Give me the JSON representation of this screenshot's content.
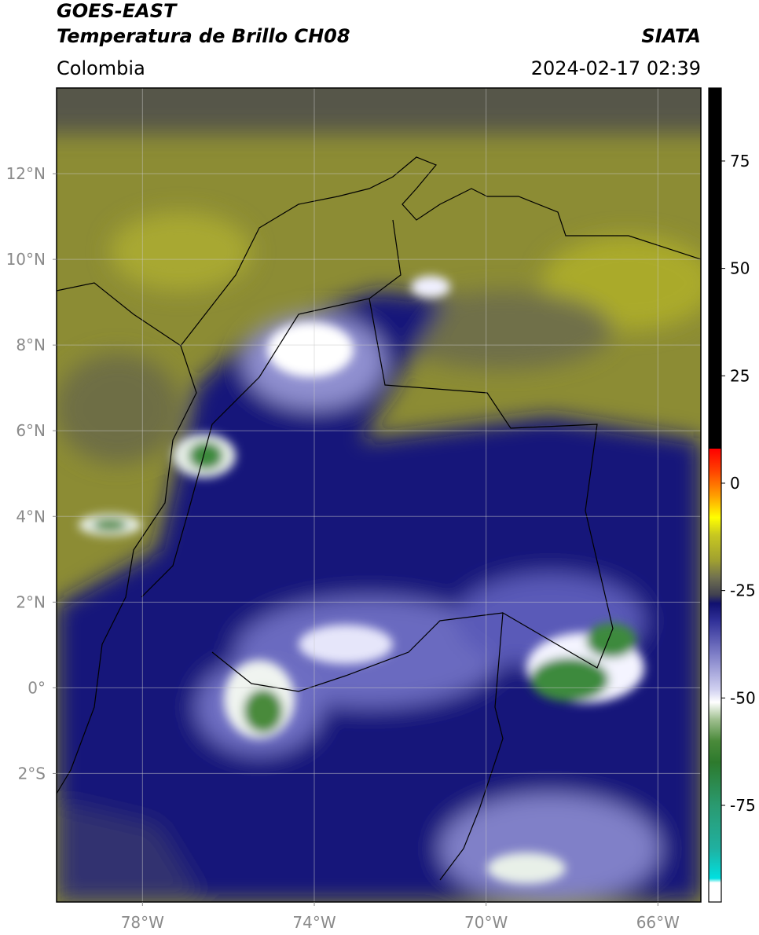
{
  "header": {
    "title": "GOES-EAST",
    "subtitle": "Temperatura de Brillo CH08",
    "region": "Colombia",
    "source": "SIATA",
    "timestamp": "2024-02-17 02:39"
  },
  "map": {
    "xlim": [
      -80,
      -65
    ],
    "ylim": [
      -5,
      14
    ],
    "grid": true,
    "xticks": [
      {
        "value": -78,
        "label": "78°W"
      },
      {
        "value": -74,
        "label": "74°W"
      },
      {
        "value": -70,
        "label": "70°W"
      },
      {
        "value": -66,
        "label": "66°W"
      }
    ],
    "yticks": [
      {
        "value": 12,
        "label": "12°N"
      },
      {
        "value": 10,
        "label": "10°N"
      },
      {
        "value": 8,
        "label": "8°N"
      },
      {
        "value": 6,
        "label": "6°N"
      },
      {
        "value": 4,
        "label": "4°N"
      },
      {
        "value": 2,
        "label": "2°N"
      },
      {
        "value": 0,
        "label": "0°"
      },
      {
        "value": -2,
        "label": "2°S"
      }
    ]
  },
  "colorbar": {
    "lim": [
      -97.5,
      92
    ],
    "ticks": [
      75,
      50,
      25,
      0,
      -25,
      -50,
      -75
    ],
    "stops": [
      {
        "value": -97.5,
        "color": "#ffffff"
      },
      {
        "value": -93,
        "color": "#ffffff"
      },
      {
        "value": -92,
        "color": "#00e0e0"
      },
      {
        "value": -85,
        "color": "#20b0a0"
      },
      {
        "value": -75,
        "color": "#2a9a70"
      },
      {
        "value": -65,
        "color": "#2d7a2d"
      },
      {
        "value": -60,
        "color": "#4a8a3a"
      },
      {
        "value": -55,
        "color": "#a0c090"
      },
      {
        "value": -51,
        "color": "#ffffff"
      },
      {
        "value": -48,
        "color": "#d0d0f0"
      },
      {
        "value": -40,
        "color": "#8080c8"
      },
      {
        "value": -32,
        "color": "#303098"
      },
      {
        "value": -28,
        "color": "#101070"
      },
      {
        "value": -26,
        "color": "#404050"
      },
      {
        "value": -22,
        "color": "#707050"
      },
      {
        "value": -18,
        "color": "#a0a030"
      },
      {
        "value": -12,
        "color": "#c8c820"
      },
      {
        "value": -8,
        "color": "#ffff00"
      },
      {
        "value": -3,
        "color": "#ffa000"
      },
      {
        "value": 3,
        "color": "#ff4000"
      },
      {
        "value": 8,
        "color": "#ff0000"
      },
      {
        "value": 8,
        "color": "#000000"
      },
      {
        "value": 92,
        "color": "#000000"
      }
    ]
  }
}
